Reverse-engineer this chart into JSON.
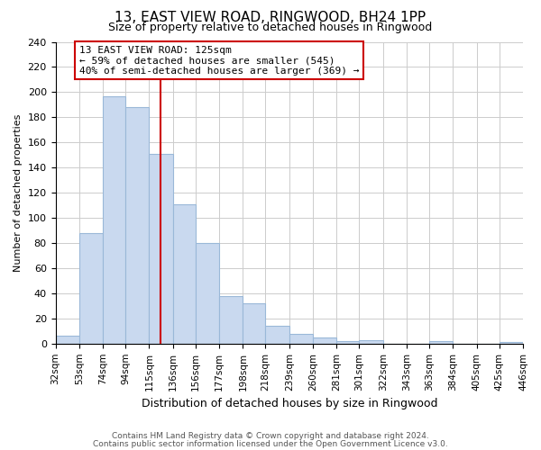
{
  "title": "13, EAST VIEW ROAD, RINGWOOD, BH24 1PP",
  "subtitle": "Size of property relative to detached houses in Ringwood",
  "xlabel": "Distribution of detached houses by size in Ringwood",
  "ylabel": "Number of detached properties",
  "bin_edges": [
    32,
    53,
    74,
    94,
    115,
    136,
    156,
    177,
    198,
    218,
    239,
    260,
    281,
    301,
    322,
    343,
    363,
    384,
    405,
    425,
    446
  ],
  "bar_heights": [
    6,
    88,
    197,
    188,
    151,
    111,
    80,
    38,
    32,
    14,
    8,
    5,
    2,
    3,
    0,
    0,
    2,
    0,
    0,
    1
  ],
  "bar_color": "#c9d9ef",
  "bar_edge_color": "#9ab8d8",
  "vline_x": 125,
  "vline_color": "#cc0000",
  "annotation_title": "13 EAST VIEW ROAD: 125sqm",
  "annotation_line1": "← 59% of detached houses are smaller (545)",
  "annotation_line2": "40% of semi-detached houses are larger (369) →",
  "annotation_box_color": "#ffffff",
  "annotation_box_edge": "#cc0000",
  "ylim": [
    0,
    240
  ],
  "yticks": [
    0,
    20,
    40,
    60,
    80,
    100,
    120,
    140,
    160,
    180,
    200,
    220,
    240
  ],
  "tick_labels": [
    "32sqm",
    "53sqm",
    "74sqm",
    "94sqm",
    "115sqm",
    "136sqm",
    "156sqm",
    "177sqm",
    "198sqm",
    "218sqm",
    "239sqm",
    "260sqm",
    "281sqm",
    "301sqm",
    "322sqm",
    "343sqm",
    "363sqm",
    "384sqm",
    "405sqm",
    "425sqm",
    "446sqm"
  ],
  "footnote1": "Contains HM Land Registry data © Crown copyright and database right 2024.",
  "footnote2": "Contains public sector information licensed under the Open Government Licence v3.0.",
  "background_color": "#ffffff",
  "grid_color": "#cccccc"
}
